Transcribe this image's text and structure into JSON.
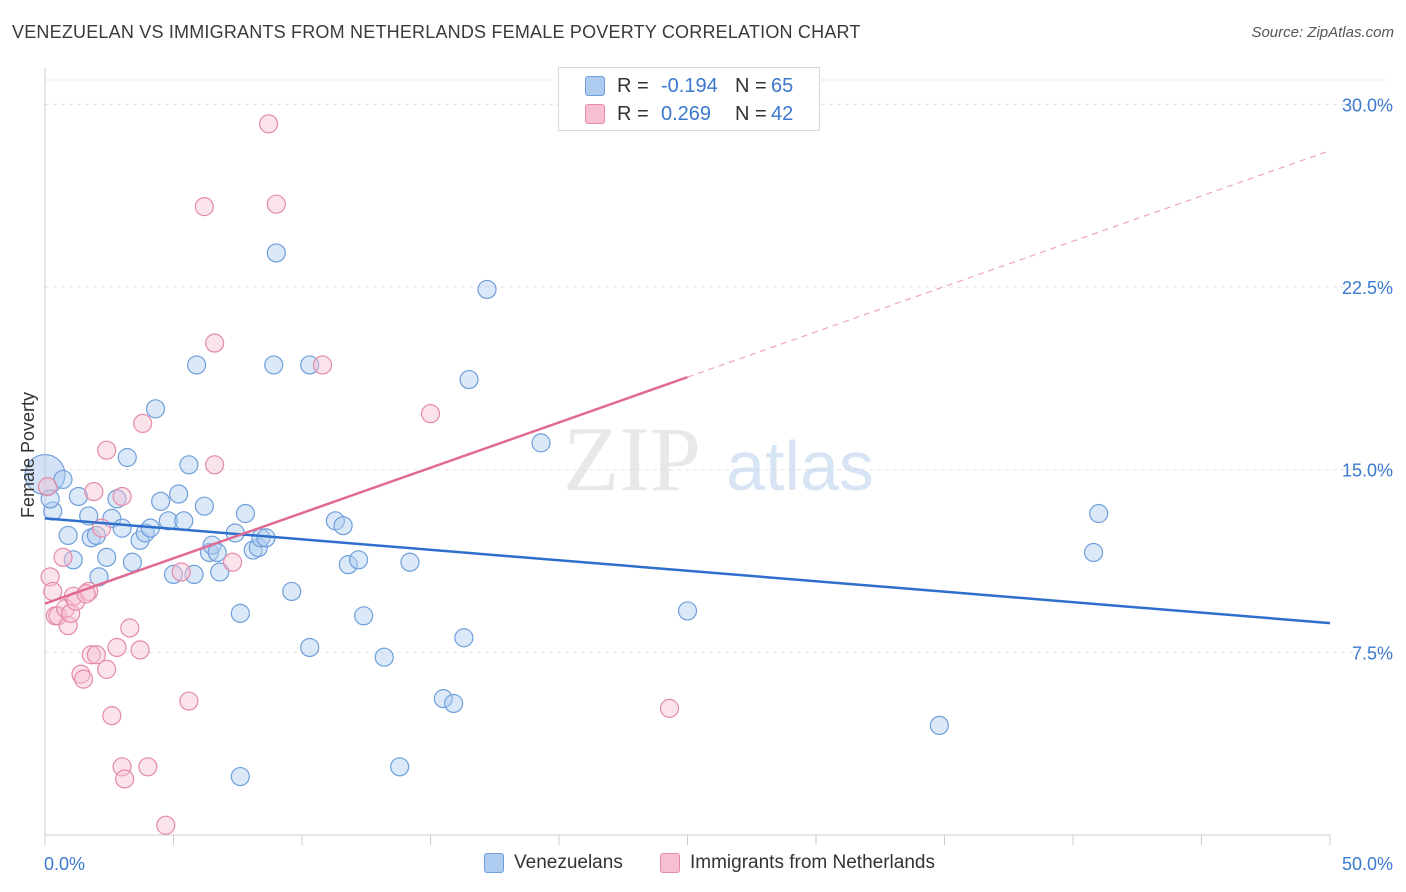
{
  "title": "VENEZUELAN VS IMMIGRANTS FROM NETHERLANDS FEMALE POVERTY CORRELATION CHART",
  "source": "Source: ZipAtlas.com",
  "watermark": {
    "zip": "ZIP",
    "atlas": "atlas"
  },
  "legend_top": {
    "rows": [
      {
        "r_label": "R =",
        "r_value": "-0.194",
        "n_label": "N =",
        "n_value": "65",
        "color": "#aecbf0",
        "stroke": "#6f9fdb"
      },
      {
        "r_label": "R =",
        "r_value": "0.269",
        "n_label": "N =",
        "n_value": "42",
        "color": "#f7c0d0",
        "stroke": "#e58aa8"
      }
    ]
  },
  "legend_bottom": {
    "items": [
      {
        "label": "Venezuelans",
        "color": "#aecbf0",
        "stroke": "#6f9fdb"
      },
      {
        "label": "Immigrants from Netherlands",
        "color": "#f7c0d0",
        "stroke": "#e58aa8"
      }
    ]
  },
  "chart_data": {
    "type": "scatter",
    "title": "VENEZUELAN VS IMMIGRANTS FROM NETHERLANDS FEMALE POVERTY CORRELATION CHART",
    "xlabel": "",
    "ylabel": "Female Poverty",
    "xlim": [
      0,
      50
    ],
    "ylim": [
      0,
      31
    ],
    "x_tick_labels": [
      "0.0%",
      "50.0%"
    ],
    "y_ticks": [
      7.5,
      15.0,
      22.5,
      30.0
    ],
    "y_tick_labels": [
      "7.5%",
      "15.0%",
      "22.5%",
      "30.0%"
    ],
    "grid": "horizontal dashed",
    "legend_placement": "top-center",
    "series": [
      {
        "name": "Venezuelans",
        "color": "#6f9fdb",
        "fill": "#aecbf0",
        "trend": {
          "x": [
            0,
            50
          ],
          "y": [
            13.0,
            8.7
          ],
          "style": "solid",
          "color": "#2f6fcc"
        },
        "points": [
          [
            0.0,
            14.8
          ],
          [
            0.3,
            13.3
          ],
          [
            0.7,
            14.6
          ],
          [
            0.9,
            12.3
          ],
          [
            1.1,
            11.3
          ],
          [
            1.3,
            13.9
          ],
          [
            1.7,
            13.1
          ],
          [
            1.8,
            12.2
          ],
          [
            2.0,
            12.3
          ],
          [
            2.1,
            10.6
          ],
          [
            2.4,
            11.4
          ],
          [
            2.6,
            13.0
          ],
          [
            2.8,
            13.8
          ],
          [
            3.0,
            12.6
          ],
          [
            3.2,
            15.5
          ],
          [
            3.4,
            11.2
          ],
          [
            3.7,
            12.1
          ],
          [
            3.9,
            12.4
          ],
          [
            4.1,
            12.6
          ],
          [
            4.3,
            17.5
          ],
          [
            4.5,
            13.7
          ],
          [
            4.8,
            12.9
          ],
          [
            5.0,
            10.7
          ],
          [
            5.2,
            14.0
          ],
          [
            5.4,
            12.9
          ],
          [
            5.6,
            15.2
          ],
          [
            5.8,
            10.7
          ],
          [
            5.9,
            19.3
          ],
          [
            6.2,
            13.5
          ],
          [
            6.4,
            11.6
          ],
          [
            6.5,
            11.9
          ],
          [
            6.7,
            11.6
          ],
          [
            6.8,
            10.8
          ],
          [
            7.4,
            12.4
          ],
          [
            7.6,
            9.1
          ],
          [
            7.8,
            13.2
          ],
          [
            7.6,
            2.4
          ],
          [
            8.1,
            11.7
          ],
          [
            8.3,
            11.8
          ],
          [
            8.4,
            12.2
          ],
          [
            8.6,
            12.2
          ],
          [
            8.9,
            19.3
          ],
          [
            9.0,
            23.9
          ],
          [
            9.6,
            10.0
          ],
          [
            10.3,
            19.3
          ],
          [
            10.3,
            7.7
          ],
          [
            11.3,
            12.9
          ],
          [
            11.6,
            12.7
          ],
          [
            11.8,
            11.1
          ],
          [
            12.2,
            11.3
          ],
          [
            12.4,
            9.0
          ],
          [
            13.2,
            7.3
          ],
          [
            13.8,
            2.8
          ],
          [
            14.2,
            11.2
          ],
          [
            15.5,
            5.6
          ],
          [
            15.9,
            5.4
          ],
          [
            16.3,
            8.1
          ],
          [
            16.5,
            18.7
          ],
          [
            17.2,
            22.4
          ],
          [
            19.3,
            16.1
          ],
          [
            25.0,
            9.2
          ],
          [
            34.8,
            4.5
          ],
          [
            40.8,
            11.6
          ],
          [
            41.0,
            13.2
          ],
          [
            0.2,
            13.8
          ]
        ]
      },
      {
        "name": "Immigrants from Netherlands",
        "color": "#e58aa8",
        "fill": "#f7c0d0",
        "trend": {
          "x": [
            0,
            25
          ],
          "y": [
            9.5,
            18.8
          ],
          "style": "solid",
          "color": "#e06a94",
          "extended": {
            "x": [
              25,
              50
            ],
            "y": [
              18.8,
              28.1
            ],
            "style": "dashed"
          }
        },
        "points": [
          [
            0.1,
            14.3
          ],
          [
            0.2,
            10.6
          ],
          [
            0.3,
            10.0
          ],
          [
            0.4,
            9.0
          ],
          [
            0.5,
            9.0
          ],
          [
            0.7,
            11.4
          ],
          [
            0.8,
            9.3
          ],
          [
            0.9,
            8.6
          ],
          [
            1.0,
            9.1
          ],
          [
            1.1,
            9.8
          ],
          [
            1.2,
            9.6
          ],
          [
            1.4,
            6.6
          ],
          [
            1.5,
            6.4
          ],
          [
            1.7,
            10.0
          ],
          [
            1.8,
            7.4
          ],
          [
            1.9,
            14.1
          ],
          [
            2.0,
            7.4
          ],
          [
            2.2,
            12.6
          ],
          [
            2.4,
            15.8
          ],
          [
            2.4,
            6.8
          ],
          [
            2.6,
            4.9
          ],
          [
            2.8,
            7.7
          ],
          [
            3.0,
            13.9
          ],
          [
            3.0,
            2.8
          ],
          [
            3.1,
            2.3
          ],
          [
            3.3,
            8.5
          ],
          [
            3.7,
            7.6
          ],
          [
            3.8,
            16.9
          ],
          [
            4.0,
            2.8
          ],
          [
            4.7,
            0.4
          ],
          [
            5.3,
            10.8
          ],
          [
            5.6,
            5.5
          ],
          [
            6.2,
            25.8
          ],
          [
            6.6,
            20.2
          ],
          [
            6.6,
            15.2
          ],
          [
            7.3,
            11.2
          ],
          [
            8.7,
            29.2
          ],
          [
            9.0,
            25.9
          ],
          [
            10.8,
            19.3
          ],
          [
            15.0,
            17.3
          ],
          [
            24.3,
            5.2
          ],
          [
            1.6,
            9.9
          ]
        ]
      }
    ]
  }
}
